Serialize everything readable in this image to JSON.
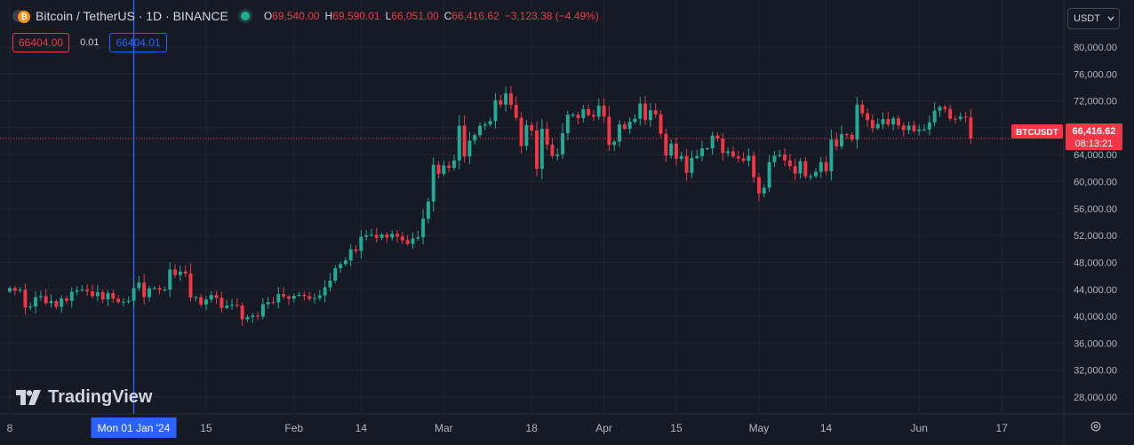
{
  "header": {
    "symbol": "Bitcoin / TetherUS · 1D · BINANCE",
    "coin_icon": "bitcoin-icon",
    "ohlc": {
      "o_label": "O",
      "o": "69,540.00",
      "h_label": "H",
      "h": "69,590.01",
      "l_label": "L",
      "l": "66,051.00",
      "c_label": "C",
      "c": "66,416.62",
      "chg": "−3,123.38 (−4.49%)"
    }
  },
  "trade": {
    "sell": "66404.00",
    "spread": "0.01",
    "buy": "66404.01"
  },
  "currency": "USDT",
  "logo": "TradingView",
  "price_tag": {
    "symbol": "BTCUSDT",
    "price": "66,416.62",
    "countdown": "08:13:21"
  },
  "crosshair_label": "Mon 01 Jan '24",
  "colors": {
    "up": "#22ab94",
    "down": "#f23645",
    "bg": "#161a25",
    "grid": "#232632",
    "text": "#b2b5be",
    "crosshair": "#2962ff"
  },
  "chart_data": {
    "type": "candlestick",
    "symbol": "BTCUSDT",
    "interval": "1D",
    "exchange": "BINANCE",
    "y_ticks": [
      28000,
      32000,
      36000,
      40000,
      44000,
      48000,
      52000,
      56000,
      60000,
      64000,
      68000,
      72000,
      76000,
      80000
    ],
    "y_tick_labels": [
      "28,000.00",
      "32,000.00",
      "36,000.00",
      "40,000.00",
      "44,000.00",
      "48,000.00",
      "52,000.00",
      "56,000.00",
      "60,000.00",
      "64,000.00",
      "68,000.00",
      "72,000.00",
      "76,000.00",
      "80,000.00"
    ],
    "ylim": [
      25500,
      82500
    ],
    "x_labels": [
      {
        "date": "2023-12-08",
        "label": "8"
      },
      {
        "date": "2024-01-15",
        "label": "15"
      },
      {
        "date": "2024-02-01",
        "label": "Feb"
      },
      {
        "date": "2024-02-14",
        "label": "14"
      },
      {
        "date": "2024-03-01",
        "label": "Mar"
      },
      {
        "date": "2024-03-18",
        "label": "18"
      },
      {
        "date": "2024-04-01",
        "label": "Apr"
      },
      {
        "date": "2024-04-15",
        "label": "15"
      },
      {
        "date": "2024-05-01",
        "label": "May"
      },
      {
        "date": "2024-05-14",
        "label": "14"
      },
      {
        "date": "2024-06-01",
        "label": "Jun"
      },
      {
        "date": "2024-06-17",
        "label": "17"
      }
    ],
    "x_range": [
      "2023-12-08",
      "2024-06-29"
    ],
    "crosshair_date": "2024-01-01",
    "last_price": 66416.62,
    "closes": [
      {
        "date": "2023-12-08",
        "close": 44200
      },
      {
        "date": "2023-12-09",
        "close": 43800
      },
      {
        "date": "2023-12-10",
        "close": 43950
      },
      {
        "date": "2023-12-11",
        "close": 41300
      },
      {
        "date": "2023-12-12",
        "close": 41450
      },
      {
        "date": "2023-12-13",
        "close": 42850
      },
      {
        "date": "2023-12-14",
        "close": 43000
      },
      {
        "date": "2023-12-15",
        "close": 41950
      },
      {
        "date": "2023-12-16",
        "close": 42250
      },
      {
        "date": "2023-12-17",
        "close": 41400
      },
      {
        "date": "2023-12-18",
        "close": 42650
      },
      {
        "date": "2023-12-19",
        "close": 42300
      },
      {
        "date": "2023-12-20",
        "close": 43650
      },
      {
        "date": "2023-12-21",
        "close": 43850
      },
      {
        "date": "2023-12-22",
        "close": 43950
      },
      {
        "date": "2023-12-23",
        "close": 43700
      },
      {
        "date": "2023-12-24",
        "close": 43000
      },
      {
        "date": "2023-12-25",
        "close": 43600
      },
      {
        "date": "2023-12-26",
        "close": 42500
      },
      {
        "date": "2023-12-27",
        "close": 43450
      },
      {
        "date": "2023-12-28",
        "close": 42600
      },
      {
        "date": "2023-12-29",
        "close": 42100
      },
      {
        "date": "2023-12-30",
        "close": 42150
      },
      {
        "date": "2023-12-31",
        "close": 42300
      },
      {
        "date": "2024-01-01",
        "close": 44200
      },
      {
        "date": "2024-01-02",
        "close": 45000
      },
      {
        "date": "2024-01-03",
        "close": 42850
      },
      {
        "date": "2024-01-04",
        "close": 44150
      },
      {
        "date": "2024-01-05",
        "close": 44200
      },
      {
        "date": "2024-01-06",
        "close": 43950
      },
      {
        "date": "2024-01-07",
        "close": 43950
      },
      {
        "date": "2024-01-08",
        "close": 46950
      },
      {
        "date": "2024-01-09",
        "close": 46150
      },
      {
        "date": "2024-01-10",
        "close": 46650
      },
      {
        "date": "2024-01-11",
        "close": 46350
      },
      {
        "date": "2024-01-12",
        "close": 42800
      },
      {
        "date": "2024-01-13",
        "close": 42850
      },
      {
        "date": "2024-01-14",
        "close": 41750
      },
      {
        "date": "2024-01-15",
        "close": 42500
      },
      {
        "date": "2024-01-16",
        "close": 43150
      },
      {
        "date": "2024-01-17",
        "close": 42750
      },
      {
        "date": "2024-01-18",
        "close": 41250
      },
      {
        "date": "2024-01-19",
        "close": 41600
      },
      {
        "date": "2024-01-20",
        "close": 41700
      },
      {
        "date": "2024-01-21",
        "close": 41600
      },
      {
        "date": "2024-01-22",
        "close": 39550
      },
      {
        "date": "2024-01-23",
        "close": 39900
      },
      {
        "date": "2024-01-24",
        "close": 40100
      },
      {
        "date": "2024-01-25",
        "close": 39950
      },
      {
        "date": "2024-01-26",
        "close": 41800
      },
      {
        "date": "2024-01-27",
        "close": 42100
      },
      {
        "date": "2024-01-28",
        "close": 42050
      },
      {
        "date": "2024-01-29",
        "close": 43300
      },
      {
        "date": "2024-01-30",
        "close": 42950
      },
      {
        "date": "2024-01-31",
        "close": 42600
      },
      {
        "date": "2024-02-01",
        "close": 43050
      },
      {
        "date": "2024-02-02",
        "close": 43200
      },
      {
        "date": "2024-02-03",
        "close": 43000
      },
      {
        "date": "2024-02-04",
        "close": 42600
      },
      {
        "date": "2024-02-05",
        "close": 42700
      },
      {
        "date": "2024-02-06",
        "close": 43100
      },
      {
        "date": "2024-02-07",
        "close": 44300
      },
      {
        "date": "2024-02-08",
        "close": 45300
      },
      {
        "date": "2024-02-09",
        "close": 47150
      },
      {
        "date": "2024-02-10",
        "close": 47750
      },
      {
        "date": "2024-02-11",
        "close": 48300
      },
      {
        "date": "2024-02-12",
        "close": 49950
      },
      {
        "date": "2024-02-13",
        "close": 49700
      },
      {
        "date": "2024-02-14",
        "close": 51800
      },
      {
        "date": "2024-02-15",
        "close": 52000
      },
      {
        "date": "2024-02-16",
        "close": 52100
      },
      {
        "date": "2024-02-17",
        "close": 51650
      },
      {
        "date": "2024-02-18",
        "close": 52150
      },
      {
        "date": "2024-02-19",
        "close": 51700
      },
      {
        "date": "2024-02-20",
        "close": 52250
      },
      {
        "date": "2024-02-21",
        "close": 51850
      },
      {
        "date": "2024-02-22",
        "close": 51300
      },
      {
        "date": "2024-02-23",
        "close": 50750
      },
      {
        "date": "2024-02-24",
        "close": 51550
      },
      {
        "date": "2024-02-25",
        "close": 51750
      },
      {
        "date": "2024-02-26",
        "close": 54500
      },
      {
        "date": "2024-02-27",
        "close": 57050
      },
      {
        "date": "2024-02-28",
        "close": 62500
      },
      {
        "date": "2024-02-29",
        "close": 61150
      },
      {
        "date": "2024-03-01",
        "close": 62400
      },
      {
        "date": "2024-03-02",
        "close": 62050
      },
      {
        "date": "2024-03-03",
        "close": 63150
      },
      {
        "date": "2024-03-04",
        "close": 68300
      },
      {
        "date": "2024-03-05",
        "close": 63750
      },
      {
        "date": "2024-03-06",
        "close": 66100
      },
      {
        "date": "2024-03-07",
        "close": 66900
      },
      {
        "date": "2024-03-08",
        "close": 68300
      },
      {
        "date": "2024-03-09",
        "close": 68500
      },
      {
        "date": "2024-03-10",
        "close": 69000
      },
      {
        "date": "2024-03-11",
        "close": 72100
      },
      {
        "date": "2024-03-12",
        "close": 71450
      },
      {
        "date": "2024-03-13",
        "close": 73100
      },
      {
        "date": "2024-03-14",
        "close": 71400
      },
      {
        "date": "2024-03-15",
        "close": 69500
      },
      {
        "date": "2024-03-16",
        "close": 65300
      },
      {
        "date": "2024-03-17",
        "close": 68400
      },
      {
        "date": "2024-03-18",
        "close": 67600
      },
      {
        "date": "2024-03-19",
        "close": 61900
      },
      {
        "date": "2024-03-20",
        "close": 67850
      },
      {
        "date": "2024-03-21",
        "close": 65500
      },
      {
        "date": "2024-03-22",
        "close": 63800
      },
      {
        "date": "2024-03-23",
        "close": 64050
      },
      {
        "date": "2024-03-24",
        "close": 67200
      },
      {
        "date": "2024-03-25",
        "close": 69950
      },
      {
        "date": "2024-03-26",
        "close": 69950
      },
      {
        "date": "2024-03-27",
        "close": 69450
      },
      {
        "date": "2024-03-28",
        "close": 70750
      },
      {
        "date": "2024-03-29",
        "close": 69900
      },
      {
        "date": "2024-03-30",
        "close": 69650
      },
      {
        "date": "2024-03-31",
        "close": 71300
      },
      {
        "date": "2024-04-01",
        "close": 69650
      },
      {
        "date": "2024-04-02",
        "close": 65450
      },
      {
        "date": "2024-04-03",
        "close": 65950
      },
      {
        "date": "2024-04-04",
        "close": 68500
      },
      {
        "date": "2024-04-05",
        "close": 67850
      },
      {
        "date": "2024-04-06",
        "close": 68900
      },
      {
        "date": "2024-04-07",
        "close": 69350
      },
      {
        "date": "2024-04-08",
        "close": 71600
      },
      {
        "date": "2024-04-09",
        "close": 69150
      },
      {
        "date": "2024-04-10",
        "close": 70600
      },
      {
        "date": "2024-04-11",
        "close": 70000
      },
      {
        "date": "2024-04-12",
        "close": 67100
      },
      {
        "date": "2024-04-13",
        "close": 63900
      },
      {
        "date": "2024-04-14",
        "close": 65650
      },
      {
        "date": "2024-04-15",
        "close": 63400
      },
      {
        "date": "2024-04-16",
        "close": 63800
      },
      {
        "date": "2024-04-17",
        "close": 61300
      },
      {
        "date": "2024-04-18",
        "close": 63500
      },
      {
        "date": "2024-04-19",
        "close": 63800
      },
      {
        "date": "2024-04-20",
        "close": 64950
      },
      {
        "date": "2024-04-21",
        "close": 64950
      },
      {
        "date": "2024-04-22",
        "close": 66850
      },
      {
        "date": "2024-04-23",
        "close": 66400
      },
      {
        "date": "2024-04-24",
        "close": 64250
      },
      {
        "date": "2024-04-25",
        "close": 64500
      },
      {
        "date": "2024-04-26",
        "close": 63750
      },
      {
        "date": "2024-04-27",
        "close": 63450
      },
      {
        "date": "2024-04-28",
        "close": 63100
      },
      {
        "date": "2024-04-29",
        "close": 63850
      },
      {
        "date": "2024-04-30",
        "close": 60650
      },
      {
        "date": "2024-05-01",
        "close": 58250
      },
      {
        "date": "2024-05-02",
        "close": 59100
      },
      {
        "date": "2024-05-03",
        "close": 62900
      },
      {
        "date": "2024-05-04",
        "close": 63850
      },
      {
        "date": "2024-05-05",
        "close": 64000
      },
      {
        "date": "2024-05-06",
        "close": 63150
      },
      {
        "date": "2024-05-07",
        "close": 62300
      },
      {
        "date": "2024-05-08",
        "close": 61200
      },
      {
        "date": "2024-05-09",
        "close": 63050
      },
      {
        "date": "2024-05-10",
        "close": 60800
      },
      {
        "date": "2024-05-11",
        "close": 60800
      },
      {
        "date": "2024-05-12",
        "close": 61450
      },
      {
        "date": "2024-05-13",
        "close": 62900
      },
      {
        "date": "2024-05-14",
        "close": 61550
      },
      {
        "date": "2024-05-15",
        "close": 66250
      },
      {
        "date": "2024-05-16",
        "close": 65250
      },
      {
        "date": "2024-05-17",
        "close": 67050
      },
      {
        "date": "2024-05-18",
        "close": 66950
      },
      {
        "date": "2024-05-19",
        "close": 66250
      },
      {
        "date": "2024-05-20",
        "close": 71450
      },
      {
        "date": "2024-05-21",
        "close": 70150
      },
      {
        "date": "2024-05-22",
        "close": 69150
      },
      {
        "date": "2024-05-23",
        "close": 67950
      },
      {
        "date": "2024-05-24",
        "close": 68550
      },
      {
        "date": "2024-05-25",
        "close": 69300
      },
      {
        "date": "2024-05-26",
        "close": 68500
      },
      {
        "date": "2024-05-27",
        "close": 69400
      },
      {
        "date": "2024-05-28",
        "close": 68350
      },
      {
        "date": "2024-05-29",
        "close": 67650
      },
      {
        "date": "2024-05-30",
        "close": 68350
      },
      {
        "date": "2024-05-31",
        "close": 67500
      },
      {
        "date": "2024-06-01",
        "close": 67750
      },
      {
        "date": "2024-06-02",
        "close": 67750
      },
      {
        "date": "2024-06-03",
        "close": 68800
      },
      {
        "date": "2024-06-04",
        "close": 70550
      },
      {
        "date": "2024-06-05",
        "close": 71100
      },
      {
        "date": "2024-06-06",
        "close": 70800
      },
      {
        "date": "2024-06-07",
        "close": 69350
      },
      {
        "date": "2024-06-08",
        "close": 69300
      },
      {
        "date": "2024-06-09",
        "close": 69650
      },
      {
        "date": "2024-06-10",
        "close": 69540
      },
      {
        "date": "2024-06-11",
        "close": 66416.62
      }
    ]
  }
}
